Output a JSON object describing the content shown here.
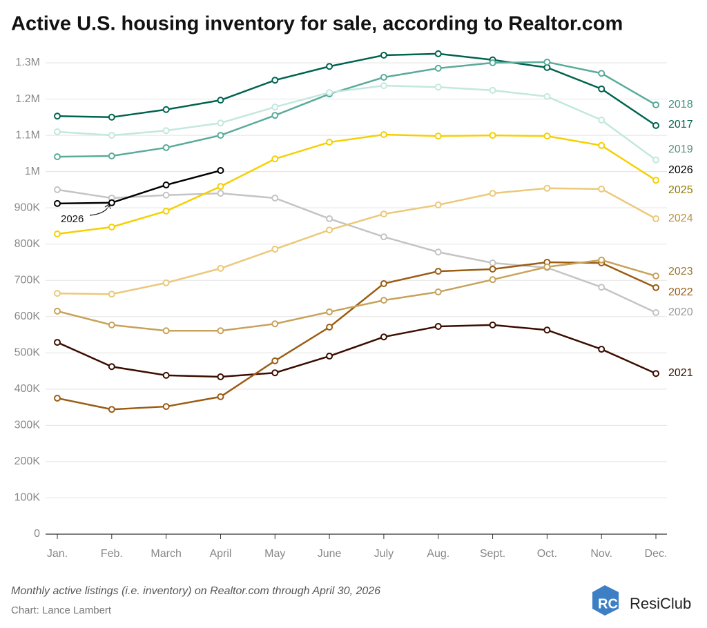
{
  "chart_data": {
    "type": "line",
    "title": "Active U.S. housing inventory for sale, according to Realtor.com",
    "caption": "Monthly active listings (i.e. inventory) on Realtor.com through April 30, 2026",
    "credit": "Chart: Lance Lambert",
    "brand": "ResiClub",
    "annotation": "2026",
    "categories": [
      "Jan.",
      "Feb.",
      "March",
      "April",
      "May",
      "June",
      "July",
      "Aug.",
      "Sept.",
      "Oct.",
      "Nov.",
      "Dec."
    ],
    "ylim": [
      0,
      1300000
    ],
    "yticks": [
      0,
      {
        "value": 100000,
        "label": "100K"
      },
      {
        "value": 200000,
        "label": "200K"
      },
      {
        "value": 300000,
        "label": "300K"
      },
      {
        "value": 400000,
        "label": "400K"
      },
      {
        "value": 500000,
        "label": "500K"
      },
      {
        "value": 600000,
        "label": "600K"
      },
      {
        "value": 700000,
        "label": "700K"
      },
      {
        "value": 800000,
        "label": "800K"
      },
      {
        "value": 900000,
        "label": "900K"
      },
      {
        "value": 1000000,
        "label": "1M"
      },
      {
        "value": 1100000,
        "label": "1.1M"
      },
      {
        "value": 1200000,
        "label": "1.2M"
      },
      {
        "value": 1300000,
        "label": "1.3M"
      }
    ],
    "grid": true,
    "series": [
      {
        "name": "2017",
        "color": "#00634f",
        "label_color": "#00634f",
        "values": [
          1153000,
          1150000,
          1171000,
          1197000,
          1252000,
          1290000,
          1321000,
          1325000,
          1308000,
          1287000,
          1228000,
          1127000
        ]
      },
      {
        "name": "2018",
        "color": "#5aab9a",
        "label_color": "#3e9280",
        "values": [
          1041000,
          1043000,
          1066000,
          1100000,
          1155000,
          1214000,
          1260000,
          1285000,
          1300000,
          1302000,
          1271000,
          1184000
        ]
      },
      {
        "name": "2019",
        "color": "#c2e8de",
        "label_color": "#5f8f84",
        "values": [
          1110000,
          1100000,
          1113000,
          1134000,
          1178000,
          1218000,
          1237000,
          1233000,
          1224000,
          1207000,
          1142000,
          1032000
        ]
      },
      {
        "name": "2020",
        "color": "#c4c4c4",
        "label_color": "#999999",
        "values": [
          950000,
          927000,
          935000,
          940000,
          927000,
          870000,
          820000,
          778000,
          748000,
          735000,
          681000,
          611000
        ]
      },
      {
        "name": "2021",
        "color": "#3b0d00",
        "label_color": "#3b0d00",
        "values": [
          529000,
          462000,
          438000,
          434000,
          445000,
          491000,
          544000,
          573000,
          577000,
          563000,
          510000,
          443000
        ]
      },
      {
        "name": "2022",
        "color": "#9b5c12",
        "label_color": "#9b5c12",
        "values": [
          375000,
          344000,
          352000,
          379000,
          478000,
          571000,
          691000,
          725000,
          731000,
          750000,
          748000,
          680000
        ]
      },
      {
        "name": "2023",
        "color": "#c8a25a",
        "label_color": "#9a7a34",
        "values": [
          615000,
          577000,
          561000,
          561000,
          580000,
          613000,
          645000,
          668000,
          702000,
          737000,
          756000,
          712000
        ]
      },
      {
        "name": "2024",
        "color": "#ecc87a",
        "label_color": "#b89243",
        "values": [
          664000,
          662000,
          693000,
          733000,
          786000,
          839000,
          883000,
          908000,
          940000,
          954000,
          952000,
          870000
        ]
      },
      {
        "name": "2025",
        "color": "#f5d000",
        "label_color": "#8f7c00",
        "values": [
          828000,
          847000,
          891000,
          959000,
          1035000,
          1081000,
          1102000,
          1098000,
          1100000,
          1098000,
          1072000,
          976000
        ]
      },
      {
        "name": "2026",
        "color": "#000000",
        "label_color": "#000000",
        "values": [
          912000,
          914000,
          963000,
          1003000,
          null,
          null,
          null,
          null,
          null,
          null,
          null,
          null
        ]
      }
    ]
  }
}
